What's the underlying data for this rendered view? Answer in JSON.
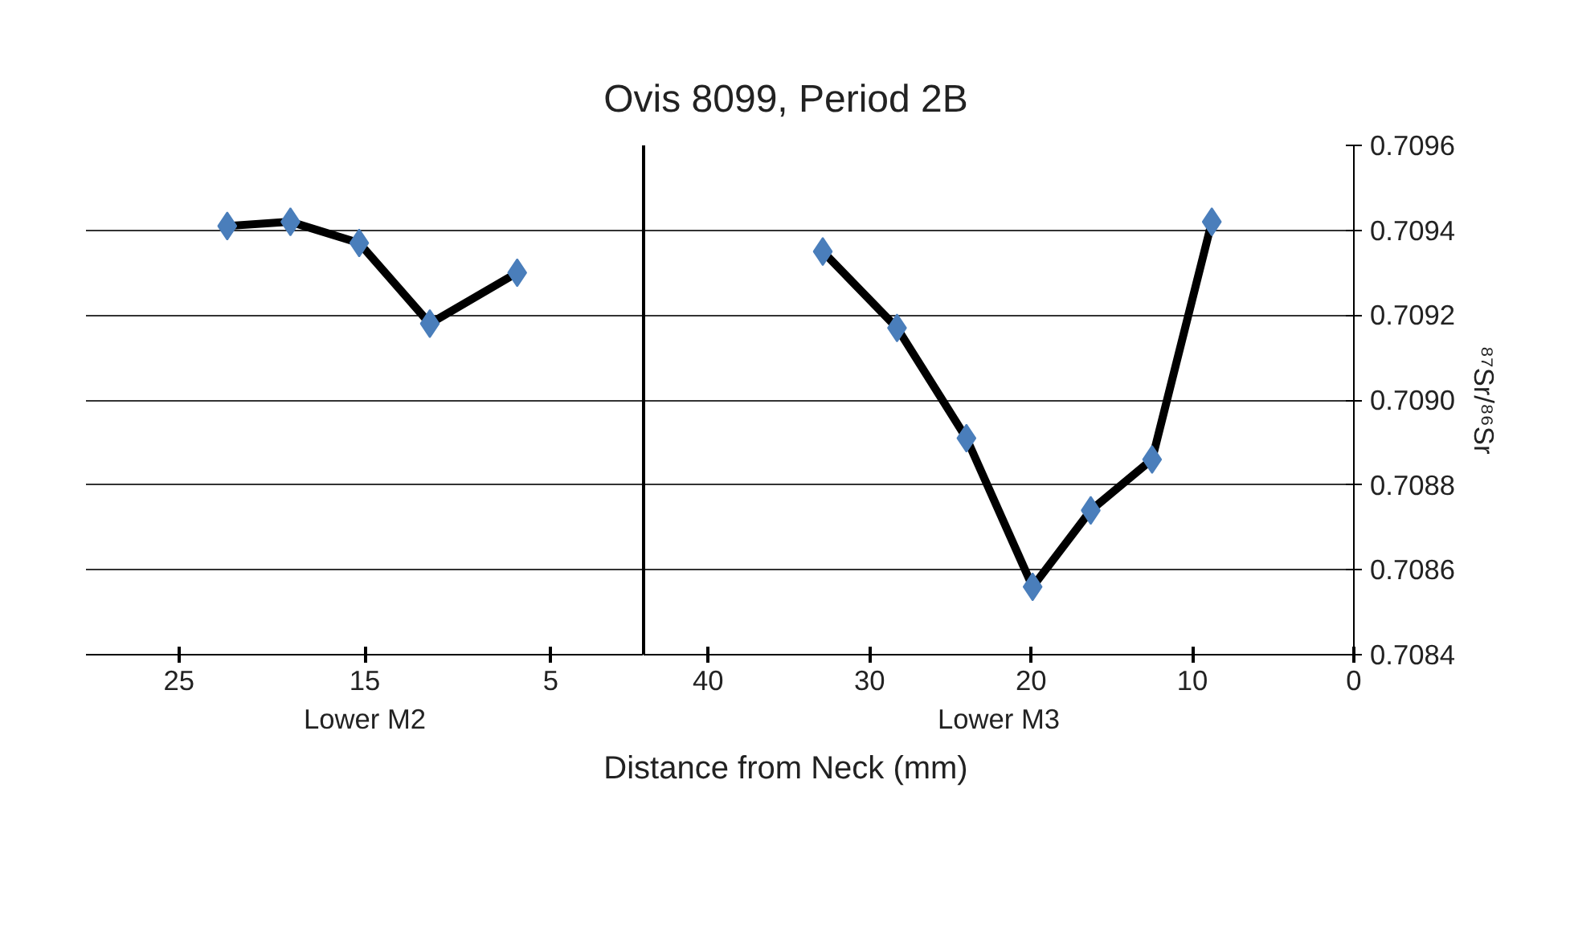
{
  "chart_data": [
    {
      "type": "line",
      "xlabel": "Lower M2",
      "annotations": [
        "Distance from Neck (mm)"
      ],
      "x": [
        22.4,
        19.0,
        15.3,
        11.5,
        6.8
      ],
      "series": [
        {
          "color": "#4a7ebb",
          "values": [
            0.70941,
            0.70942,
            0.70937,
            0.70918,
            0.7093
          ]
        }
      ],
      "xlim": [
        30,
        0
      ],
      "xticks": [
        25,
        15,
        5
      ],
      "ylim": [
        0.7084,
        0.7096
      ],
      "yticks": [
        0.7084,
        0.7086,
        0.7088,
        0.709,
        0.7092,
        0.7094,
        0.7096
      ],
      "tick_labels": "x",
      "grid": "y",
      "marker": "diamond",
      "line_style": "solid"
    },
    {
      "type": "line",
      "title": "Ovis 8099, Period 2B",
      "xlabel": "Lower M3",
      "ylabel": "⁸⁷Sr/⁸⁶Sr",
      "x": [
        32.9,
        28.3,
        24.0,
        19.9,
        16.3,
        12.5,
        8.8
      ],
      "series": [
        {
          "color": "#4a7ebb",
          "values": [
            0.70935,
            0.70917,
            0.70891,
            0.70856,
            0.70874,
            0.70886,
            0.70942
          ]
        }
      ],
      "xlim": [
        44,
        0
      ],
      "xticks": [
        40,
        30,
        20,
        10,
        0
      ],
      "ylim": [
        0.7084,
        0.7096
      ],
      "yticks": [
        {
          "value": 0.7084,
          "label": "0.7084"
        },
        {
          "value": 0.7086,
          "label": "0.7086"
        },
        {
          "value": 0.7088,
          "label": "0.7088"
        },
        {
          "value": 0.709,
          "label": "0.7090"
        },
        {
          "value": 0.7092,
          "label": "0.7092"
        },
        {
          "value": 0.7094,
          "label": "0.7094"
        },
        {
          "value": 0.7096,
          "label": "0.7096"
        }
      ],
      "grid": "y",
      "marker": "diamond",
      "line_style": "solid"
    }
  ]
}
